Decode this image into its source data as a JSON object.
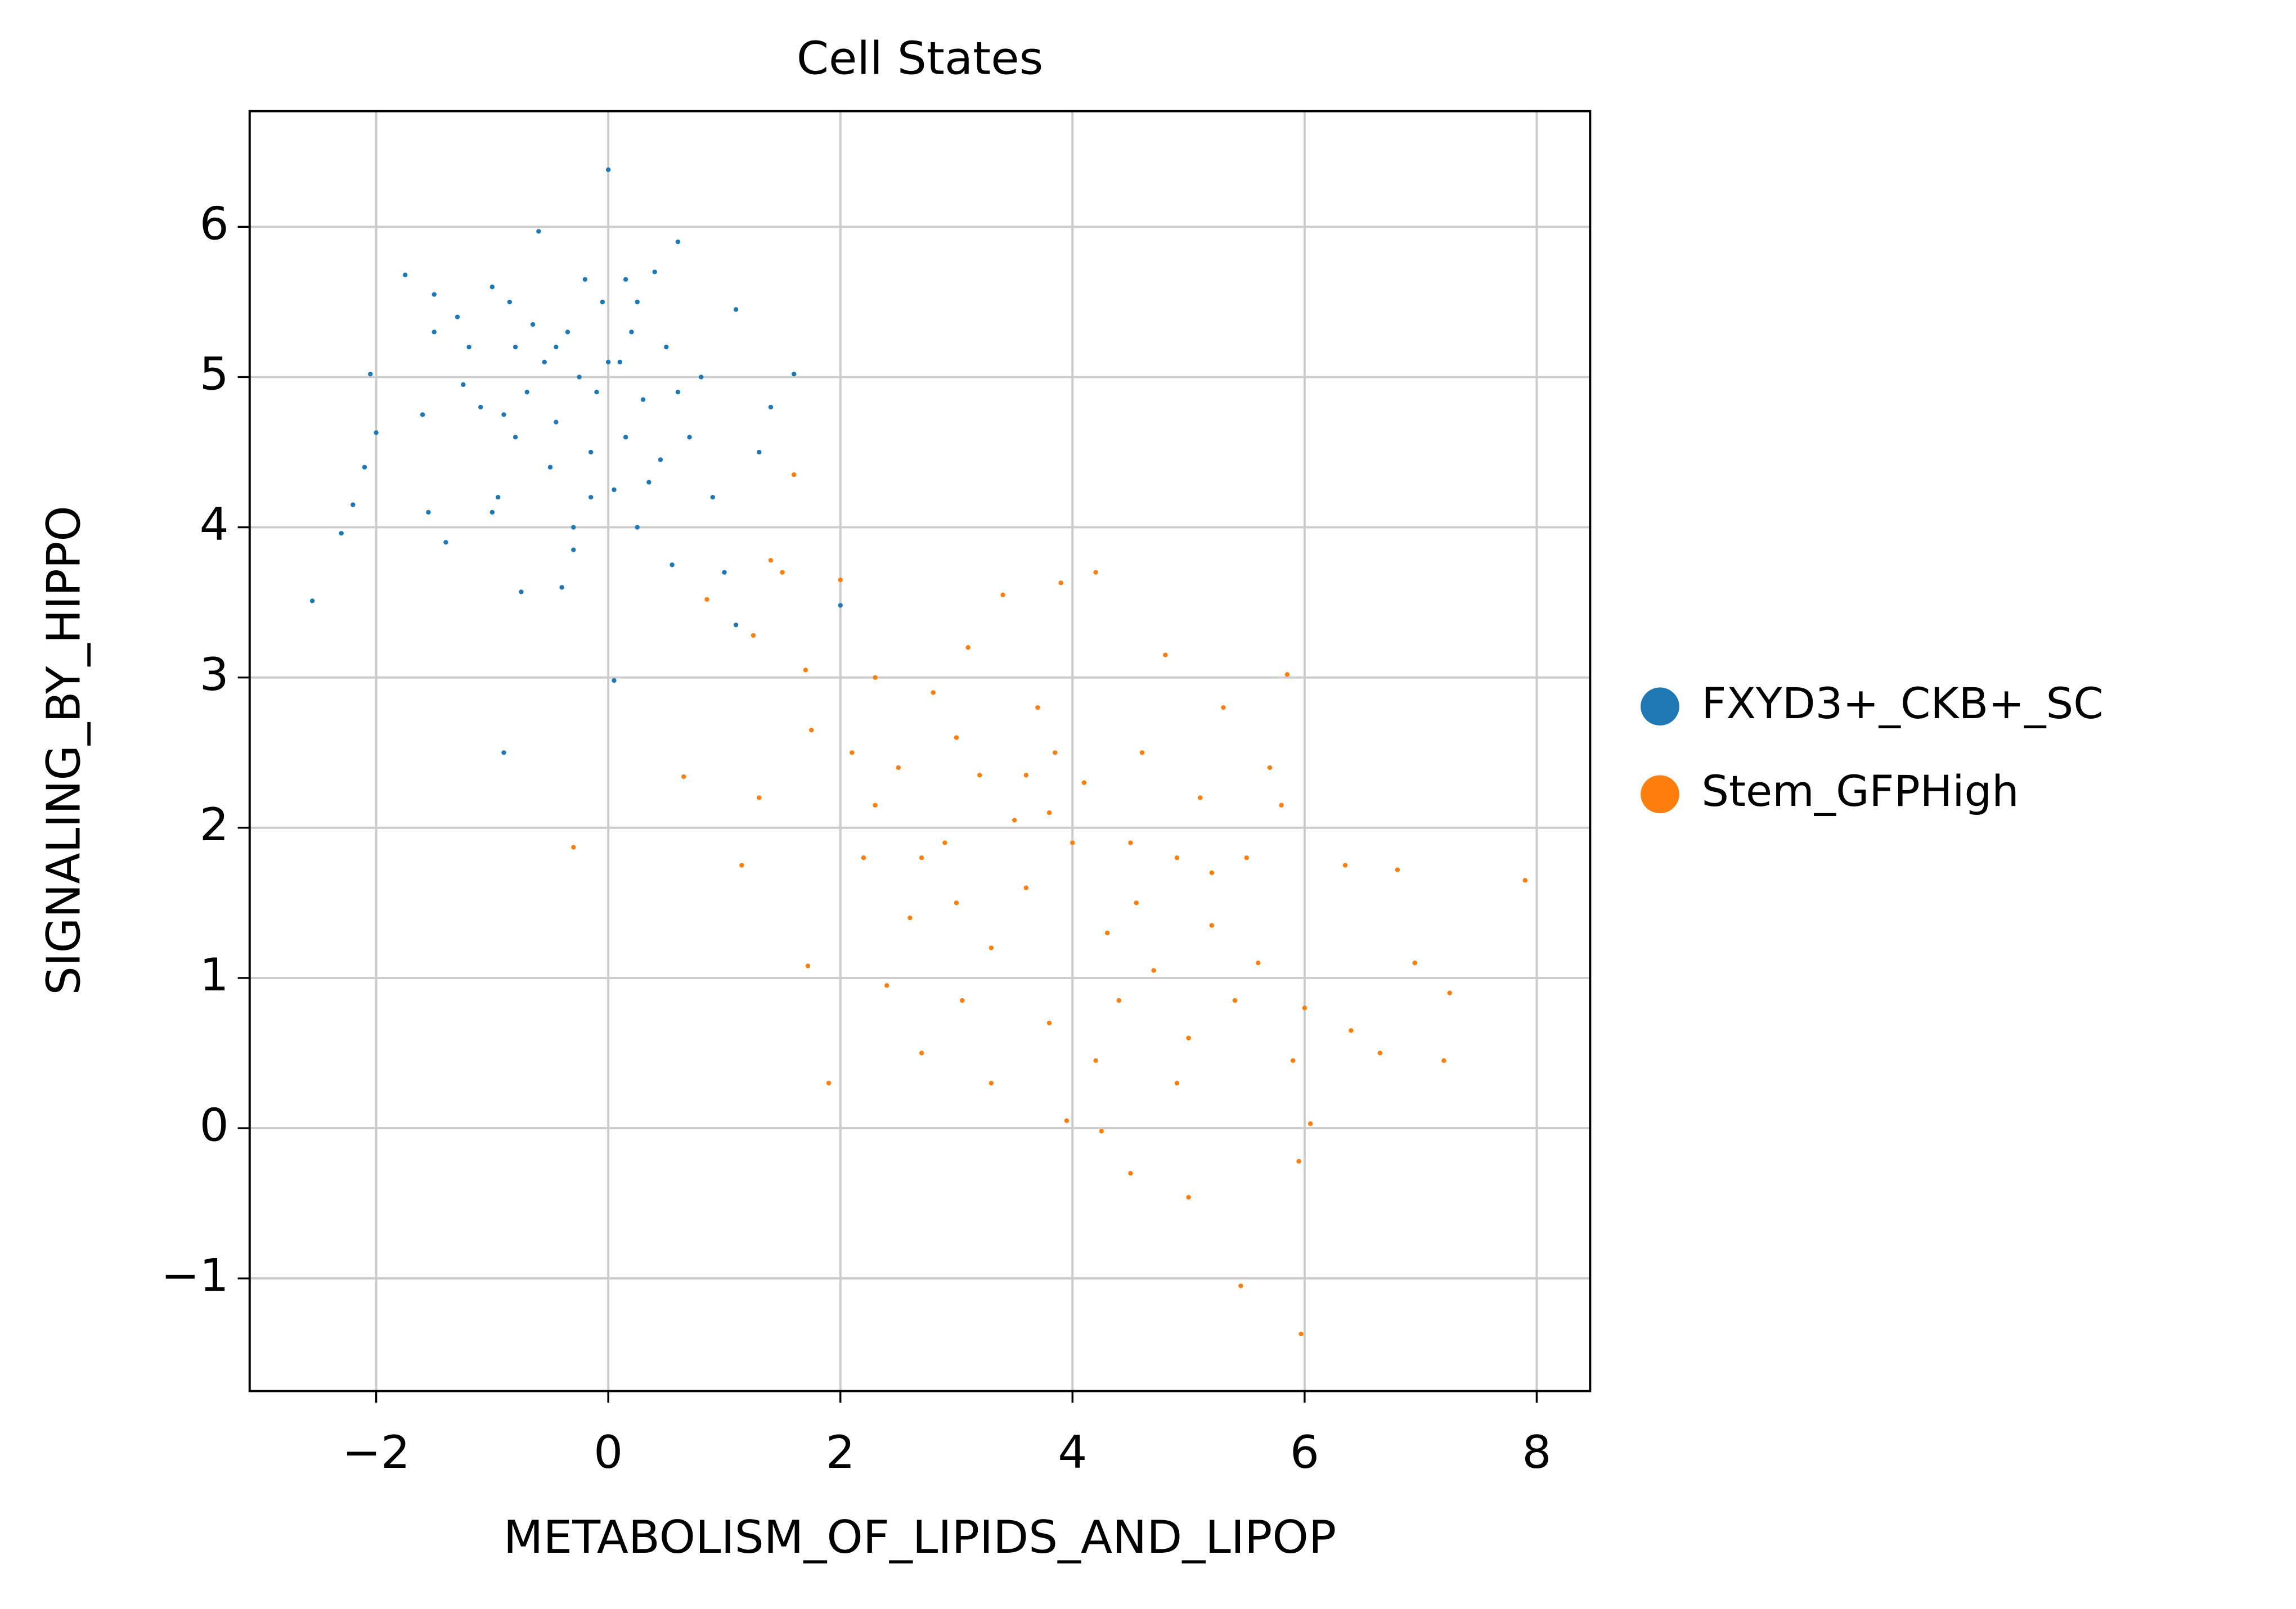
{
  "chart_data": {
    "type": "scatter",
    "title": "Cell States",
    "x_label": "METABOLISM_OF_LIPIDS_AND_LIPOP",
    "y_label": "SIGNALING_BY_HIPPO",
    "xlim": [
      -3.09,
      8.46
    ],
    "ylim": [
      -1.75,
      6.77
    ],
    "xticks": [
      {
        "value": -2,
        "label": "−2"
      },
      0,
      2,
      4,
      6,
      8
    ],
    "yticks": [
      {
        "value": -1,
        "label": "−1"
      },
      0,
      1,
      2,
      3,
      4,
      5,
      6
    ],
    "grid": true,
    "legend": "outside right",
    "series": [
      {
        "name": "FXYD3+_CKB+_SC",
        "color": "#1f77b4",
        "x": [
          -2.55,
          -2.3,
          -2.2,
          -2.1,
          -2.0,
          -2.05,
          -1.75,
          -1.6,
          -1.5,
          -1.55,
          -1.4,
          -1.3,
          -1.2,
          -1.1,
          -1.0,
          -0.95,
          -0.9,
          -0.85,
          -0.8,
          -0.75,
          -0.7,
          -0.6,
          -0.55,
          -0.5,
          -0.45,
          -0.4,
          -0.35,
          -0.3,
          -0.25,
          -0.2,
          -0.15,
          -0.1,
          -0.05,
          0.0,
          0.05,
          0.05,
          0.1,
          0.15,
          0.2,
          0.25,
          0.3,
          0.4,
          0.45,
          0.5,
          0.55,
          0.6,
          0.7,
          0.8,
          0.9,
          1.0,
          1.1,
          1.1,
          1.3,
          1.4,
          1.6,
          2.0,
          -0.3,
          -1.0,
          -0.65,
          0.25,
          -1.25,
          0.35,
          -0.8,
          0.6,
          -1.5,
          -0.15,
          0.0,
          -0.45,
          0.15,
          -0.9
        ],
        "values": [
          3.51,
          3.96,
          4.15,
          4.4,
          4.63,
          5.02,
          5.68,
          4.75,
          5.3,
          4.1,
          3.9,
          5.4,
          5.2,
          4.8,
          5.6,
          4.2,
          2.5,
          5.5,
          4.6,
          3.57,
          4.9,
          5.97,
          5.1,
          4.4,
          4.7,
          3.6,
          5.3,
          4.0,
          5.0,
          5.65,
          4.5,
          4.9,
          5.5,
          6.38,
          4.25,
          2.98,
          5.1,
          4.6,
          5.3,
          4.0,
          4.85,
          5.7,
          4.45,
          5.2,
          3.75,
          5.9,
          4.6,
          5.0,
          4.2,
          3.7,
          5.45,
          3.35,
          4.5,
          4.8,
          5.02,
          3.48,
          3.85,
          4.1,
          5.35,
          5.5,
          4.95,
          4.3,
          5.2,
          4.9,
          5.55,
          4.2,
          5.1,
          5.2,
          5.65,
          4.75
        ]
      },
      {
        "name": "Stem_GFPHigh",
        "color": "#ff7f0e",
        "x": [
          -0.3,
          0.65,
          0.85,
          1.15,
          1.25,
          1.3,
          1.4,
          1.5,
          1.6,
          1.7,
          1.72,
          1.75,
          1.9,
          2.0,
          2.1,
          2.2,
          2.3,
          2.4,
          2.5,
          2.6,
          2.7,
          2.8,
          2.9,
          3.0,
          3.05,
          3.1,
          3.2,
          3.3,
          3.4,
          3.5,
          3.6,
          3.7,
          3.8,
          3.85,
          3.9,
          3.95,
          4.0,
          4.1,
          4.2,
          4.25,
          4.3,
          4.4,
          4.5,
          4.55,
          4.6,
          4.7,
          4.8,
          4.9,
          5.0,
          5.0,
          5.1,
          5.2,
          5.3,
          5.4,
          5.45,
          5.5,
          5.6,
          5.7,
          5.8,
          5.85,
          5.9,
          5.95,
          5.97,
          6.0,
          6.05,
          6.35,
          6.4,
          6.65,
          6.8,
          6.95,
          7.2,
          7.25,
          7.9,
          3.3,
          4.2,
          2.3,
          3.6,
          4.5,
          5.2,
          3.0,
          4.9,
          2.7,
          3.8
        ],
        "values": [
          1.87,
          2.34,
          3.52,
          1.75,
          3.28,
          2.2,
          3.78,
          3.7,
          4.35,
          3.05,
          1.08,
          2.65,
          0.3,
          3.65,
          2.5,
          1.8,
          3.0,
          0.95,
          2.4,
          1.4,
          0.5,
          2.9,
          1.9,
          2.6,
          0.85,
          3.2,
          2.35,
          1.2,
          3.55,
          2.05,
          1.6,
          2.8,
          0.7,
          2.5,
          3.63,
          0.05,
          1.9,
          2.3,
          3.7,
          -0.02,
          1.3,
          0.85,
          -0.3,
          1.5,
          2.5,
          1.05,
          3.15,
          1.8,
          -0.46,
          0.6,
          2.2,
          1.35,
          2.8,
          0.85,
          -1.05,
          1.8,
          1.1,
          2.4,
          2.15,
          3.02,
          0.45,
          -0.22,
          -1.37,
          0.8,
          0.03,
          1.75,
          0.65,
          0.5,
          1.72,
          1.1,
          0.45,
          0.9,
          1.65,
          0.3,
          0.45,
          2.15,
          2.35,
          1.9,
          1.7,
          1.5,
          0.3,
          1.8,
          2.1
        ]
      }
    ]
  }
}
